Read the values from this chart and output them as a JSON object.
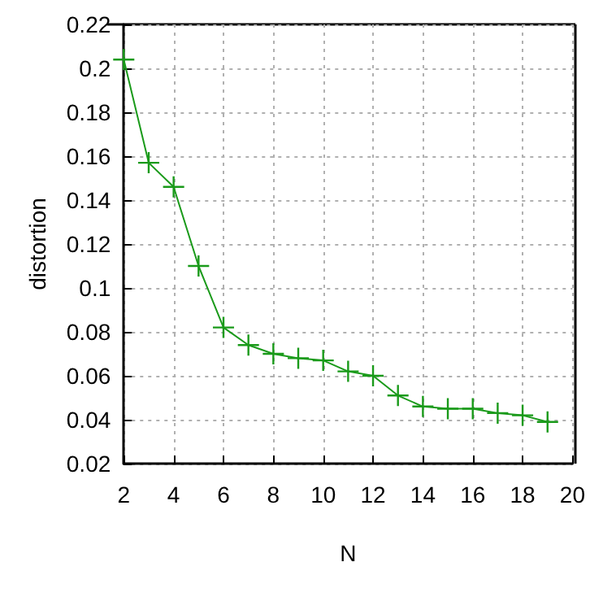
{
  "chart_data": {
    "type": "line",
    "xlabel": "N",
    "ylabel": "distortion",
    "x": [
      2,
      3,
      4,
      5,
      6,
      7,
      8,
      9,
      10,
      11,
      12,
      13,
      14,
      15,
      16,
      17,
      18,
      19
    ],
    "series": [
      {
        "color": "#1a9a1a",
        "values": [
          0.204,
          0.157,
          0.146,
          0.11,
          0.082,
          0.074,
          0.07,
          0.068,
          0.067,
          0.062,
          0.06,
          0.051,
          0.046,
          0.045,
          0.045,
          0.043,
          0.042,
          0.039
        ]
      }
    ],
    "xlim": [
      2,
      20
    ],
    "xticks": [
      2,
      4,
      6,
      8,
      10,
      12,
      14,
      16,
      18,
      20
    ],
    "ylim": [
      0.02,
      0.22
    ],
    "yticks": [
      0.02,
      0.04,
      0.06,
      0.08,
      0.1,
      0.12,
      0.14,
      0.16,
      0.18,
      0.2,
      0.22
    ],
    "grid": true,
    "marker": "cross",
    "line_style": "solid"
  }
}
